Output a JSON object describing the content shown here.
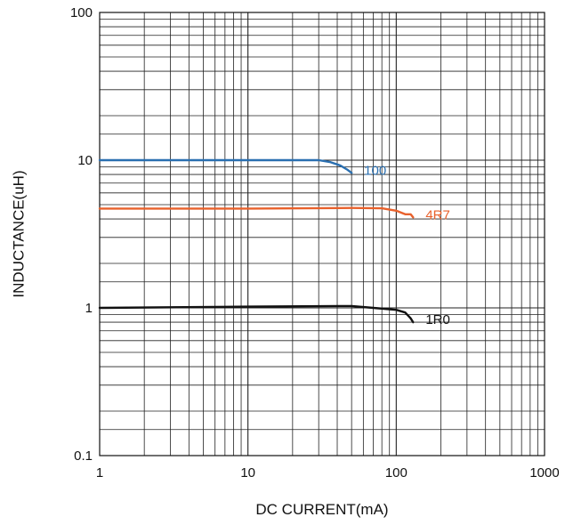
{
  "chart_data": {
    "type": "line",
    "title": "",
    "xlabel": "DC CURRENT(mA)",
    "ylabel": "INDUCTANCE(uH)",
    "xscale": "log",
    "yscale": "log",
    "xlim": [
      1,
      1000
    ],
    "ylim": [
      0.1,
      100
    ],
    "grid": true,
    "x_ticks": [
      {
        "value": 1,
        "label": "1"
      },
      {
        "value": 10,
        "label": "10"
      },
      {
        "value": 100,
        "label": "100"
      },
      {
        "value": 1000,
        "label": "1000"
      }
    ],
    "y_ticks": [
      {
        "value": 0.1,
        "label": "0.1"
      },
      {
        "value": 1,
        "label": "1"
      },
      {
        "value": 10,
        "label": "10"
      },
      {
        "value": 100,
        "label": "100"
      }
    ],
    "series": [
      {
        "name": "100",
        "color": "#2a6fb0",
        "points": [
          {
            "x": 1,
            "y": 10.0
          },
          {
            "x": 10,
            "y": 10.0
          },
          {
            "x": 30,
            "y": 10.0
          },
          {
            "x": 36,
            "y": 9.7
          },
          {
            "x": 42,
            "y": 9.2
          },
          {
            "x": 47,
            "y": 8.6
          },
          {
            "x": 50,
            "y": 8.2
          }
        ]
      },
      {
        "name": "4R7",
        "color": "#e8612c",
        "points": [
          {
            "x": 1,
            "y": 4.7
          },
          {
            "x": 10,
            "y": 4.7
          },
          {
            "x": 50,
            "y": 4.75
          },
          {
            "x": 80,
            "y": 4.72
          },
          {
            "x": 100,
            "y": 4.55
          },
          {
            "x": 115,
            "y": 4.3
          },
          {
            "x": 125,
            "y": 4.3
          },
          {
            "x": 130,
            "y": 4.1
          }
        ]
      },
      {
        "name": "1R0",
        "color": "#111111",
        "points": [
          {
            "x": 1,
            "y": 1.0
          },
          {
            "x": 10,
            "y": 1.02
          },
          {
            "x": 50,
            "y": 1.03
          },
          {
            "x": 70,
            "y": 1.0
          },
          {
            "x": 100,
            "y": 0.97
          },
          {
            "x": 115,
            "y": 0.93
          },
          {
            "x": 125,
            "y": 0.85
          },
          {
            "x": 130,
            "y": 0.8
          }
        ]
      }
    ]
  }
}
